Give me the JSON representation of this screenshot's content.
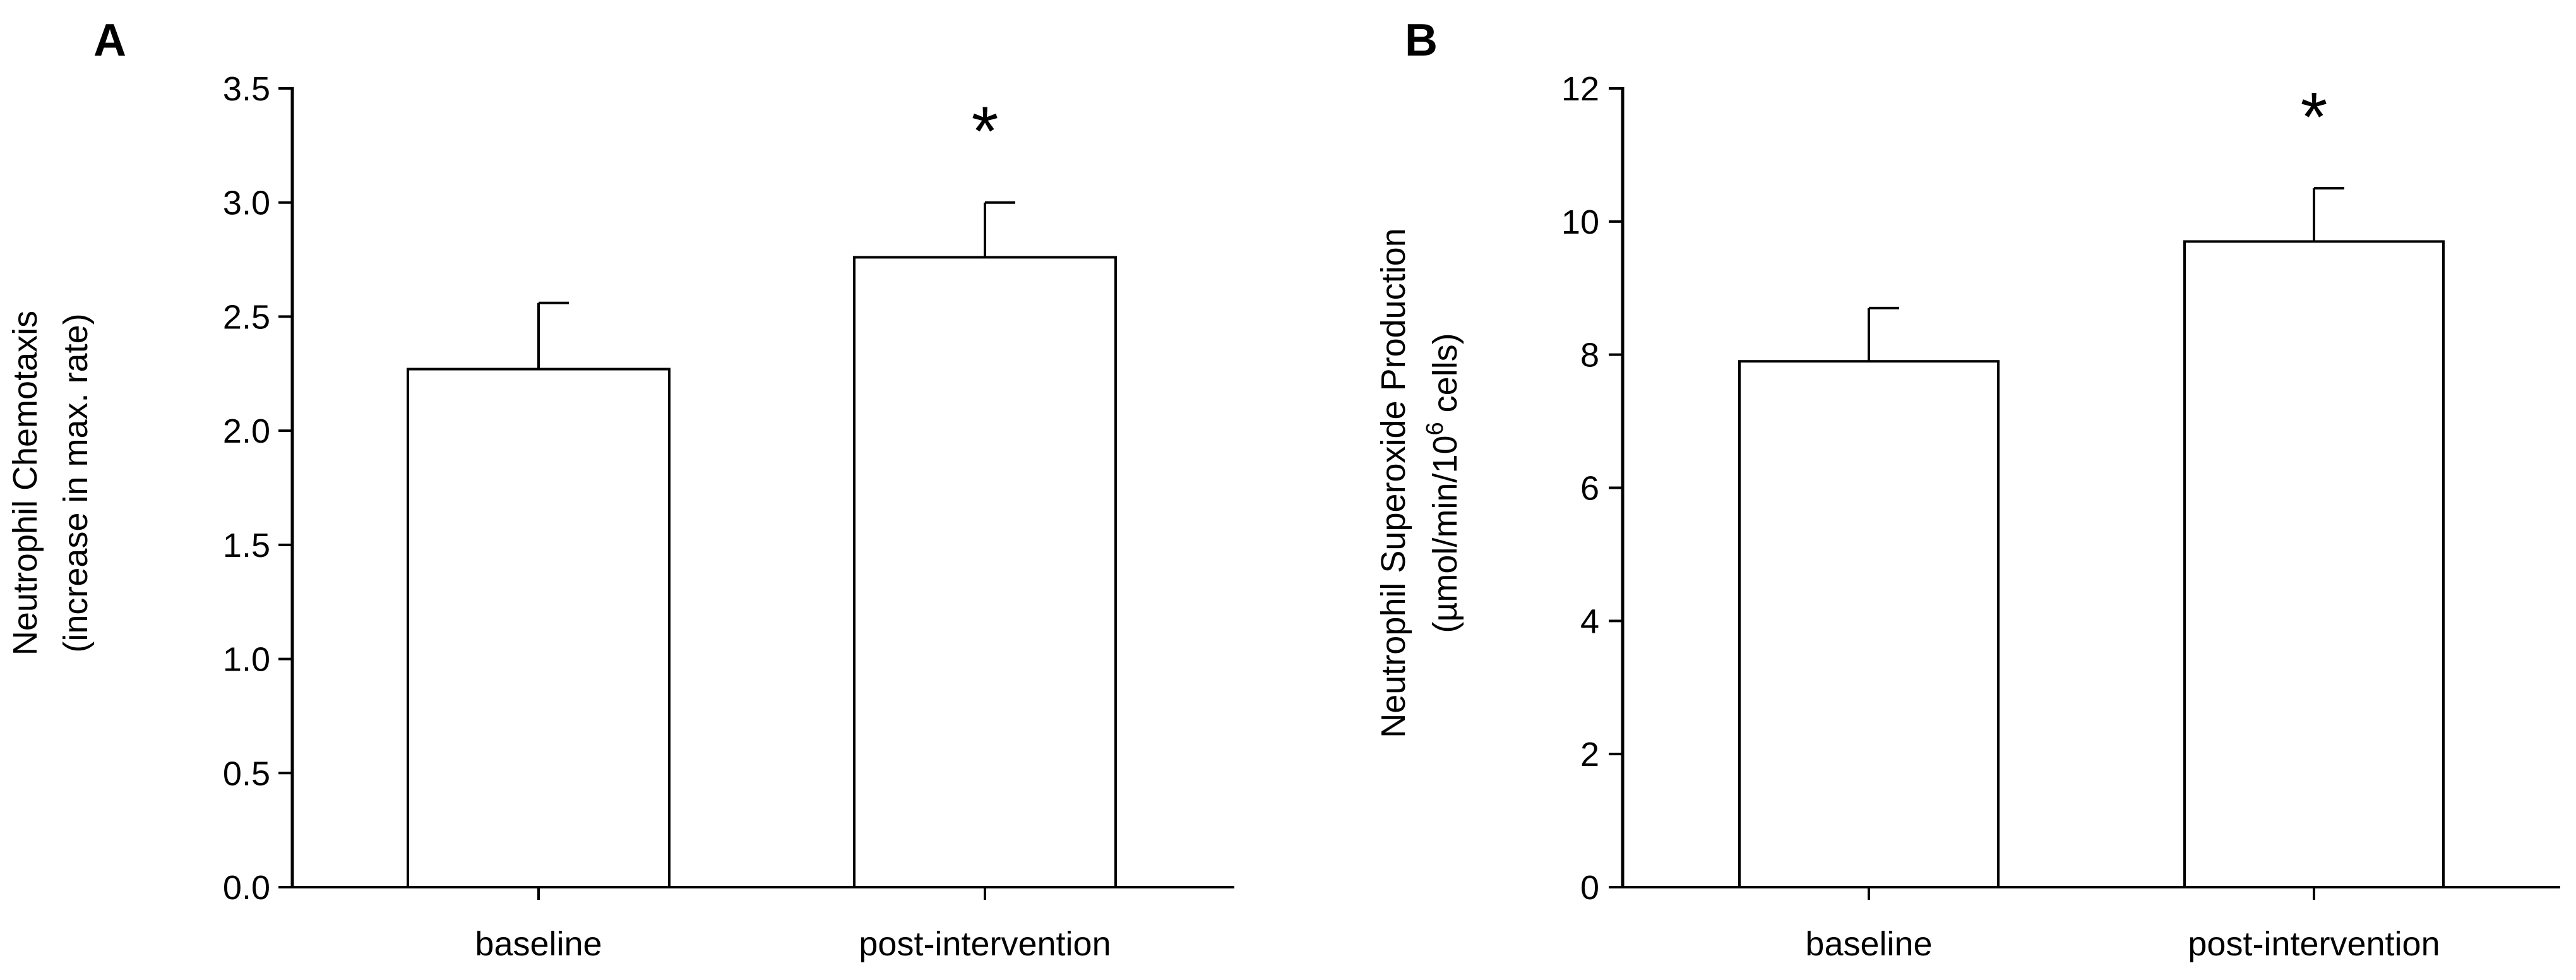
{
  "chart_data": [
    {
      "panel_label": "A",
      "type": "bar",
      "categories": [
        "baseline",
        "post-intervention"
      ],
      "values": [
        2.27,
        2.76
      ],
      "error_plus": [
        0.29,
        0.24
      ],
      "significance": [
        "",
        "*"
      ],
      "ylabel_line1": "Neutrophil Chemotaxis",
      "ylabel_line2": "(increase in max. rate)",
      "ylim": [
        0,
        3.5
      ],
      "yticks": [
        0.0,
        0.5,
        1.0,
        1.5,
        2.0,
        2.5,
        3.0,
        3.5
      ],
      "ytick_labels": [
        "0.0",
        "0.5",
        "1.0",
        "1.5",
        "2.0",
        "2.5",
        "3.0",
        "3.5"
      ],
      "bar_fill": "#ffffff",
      "grid": false
    },
    {
      "panel_label": "B",
      "type": "bar",
      "categories": [
        "baseline",
        "post-intervention"
      ],
      "values": [
        7.9,
        9.7
      ],
      "error_plus": [
        0.8,
        0.8
      ],
      "significance": [
        "",
        "*"
      ],
      "ylabel_line1": "Neutrophil Superoxide Production",
      "ylabel_line2_parts": [
        "(µmol/min/10",
        "6",
        " cells)"
      ],
      "ylim": [
        0,
        12
      ],
      "yticks": [
        0,
        2,
        4,
        6,
        8,
        10,
        12
      ],
      "ytick_labels": [
        "0",
        "2",
        "4",
        "6",
        "8",
        "10",
        "12"
      ],
      "bar_fill": "#ffffff",
      "grid": false
    }
  ]
}
